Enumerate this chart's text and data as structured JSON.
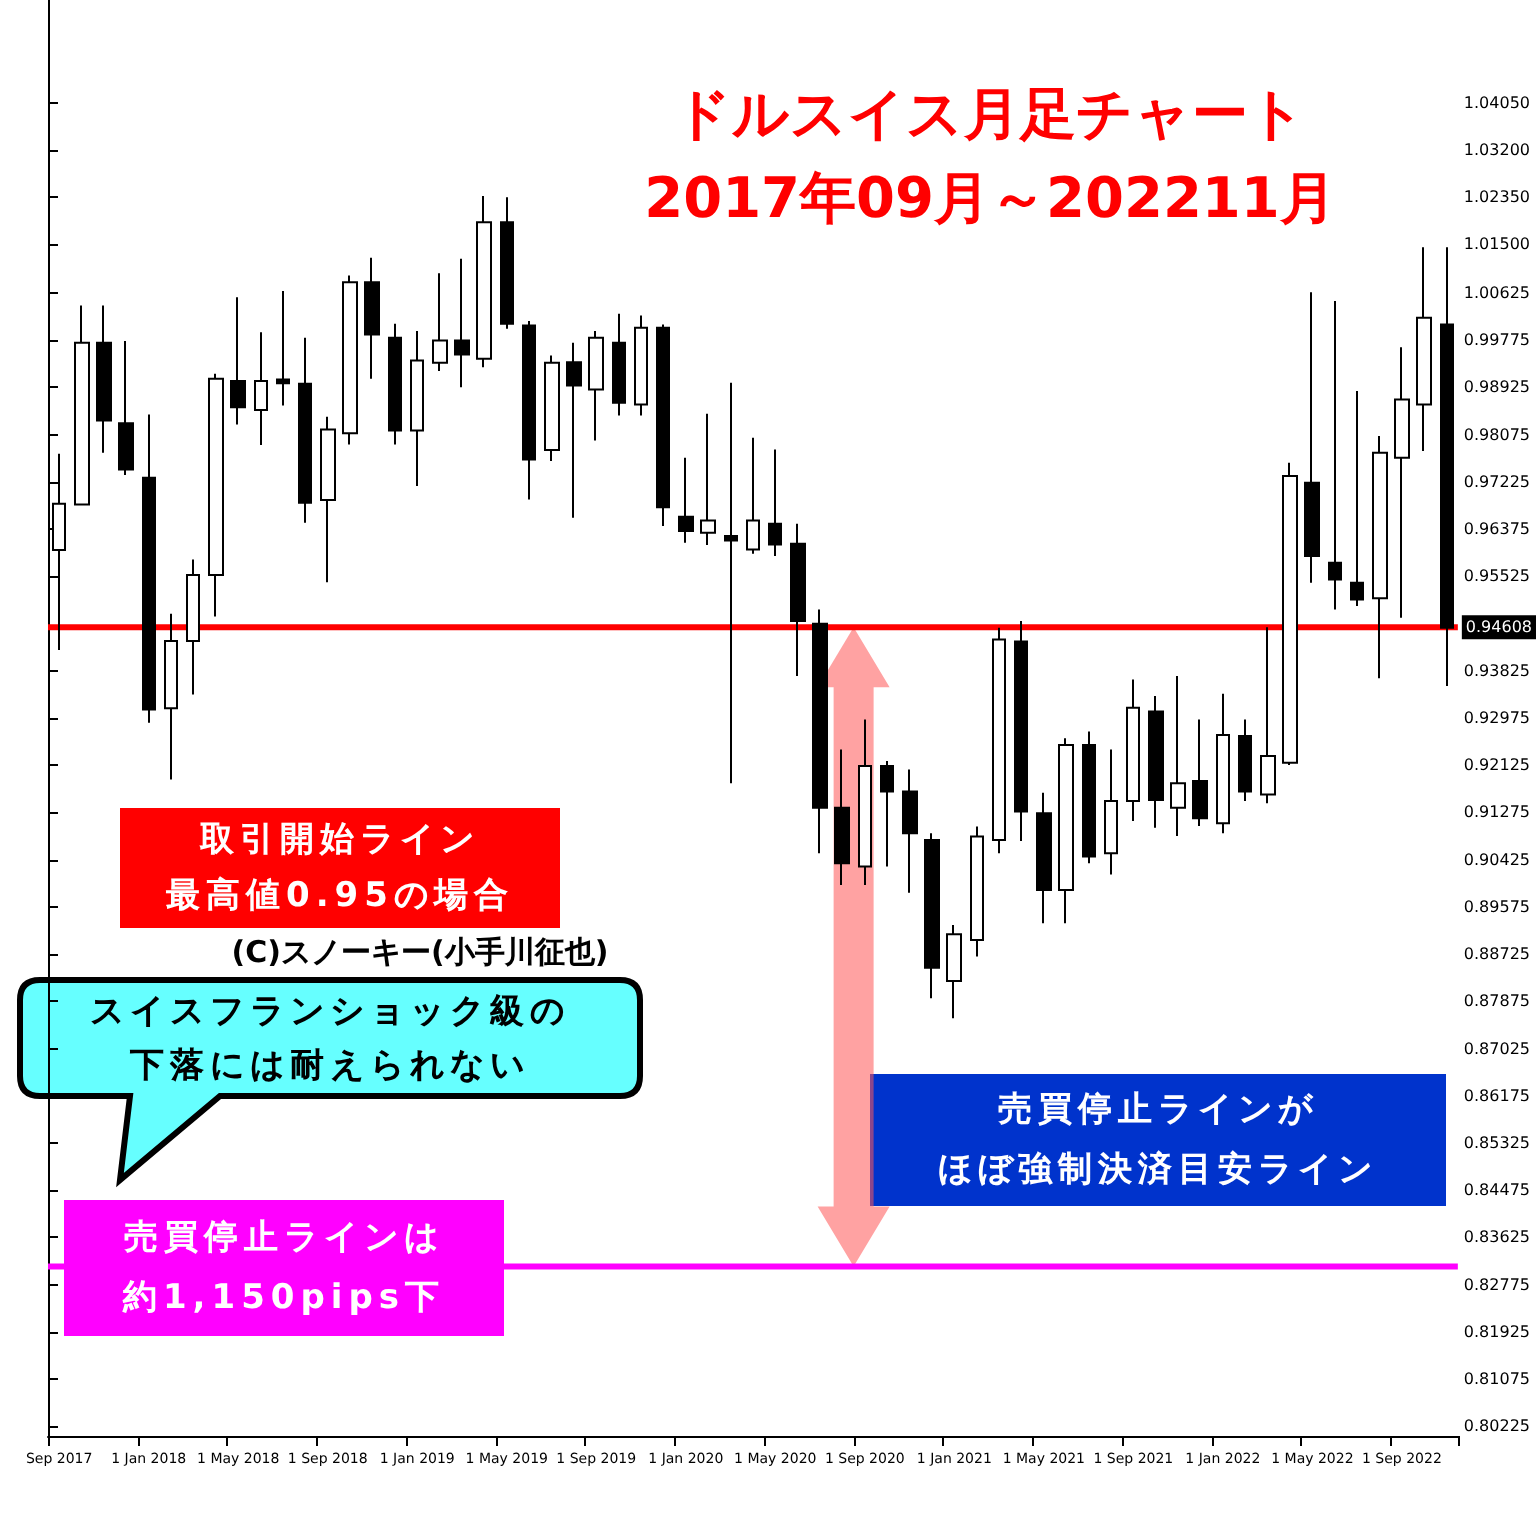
{
  "chart_data": {
    "type": "candlestick",
    "title": "ドルスイス月足チャート",
    "subtitle": "2017年09月～202211月",
    "categories": [
      "Sep 2017",
      null,
      null,
      null,
      "1 Jan 2018",
      null,
      null,
      null,
      "1 May 2018",
      null,
      null,
      null,
      "1 Sep 2018",
      null,
      null,
      null,
      "1 Jan 2019",
      null,
      null,
      null,
      "1 May 2019",
      null,
      null,
      null,
      "1 Sep 2019",
      null,
      null,
      null,
      "1 Jan 2020",
      null,
      null,
      null,
      "1 May 2020",
      null,
      null,
      null,
      "1 Sep 2020",
      null,
      null,
      null,
      "1 Jan 2021",
      null,
      null,
      null,
      "1 May 2021",
      null,
      null,
      null,
      "1 Sep 2021",
      null,
      null,
      null,
      "1 Jan 2022",
      null,
      null,
      null,
      "1 May 2022",
      null,
      null,
      null,
      "1 Sep 2022",
      null,
      null
    ],
    "ohlc": [
      [
        0.96,
        0.9773,
        0.942,
        0.9683
      ],
      [
        0.9682,
        1.004,
        0.968,
        0.9973
      ],
      [
        0.9973,
        1.004,
        0.9775,
        0.9833
      ],
      [
        0.9828,
        0.9976,
        0.9735,
        0.9745
      ],
      [
        0.973,
        0.9844,
        0.9289,
        0.9313
      ],
      [
        0.9315,
        0.9485,
        0.9187,
        0.9436
      ],
      [
        0.9436,
        0.9583,
        0.934,
        0.9555
      ],
      [
        0.9555,
        0.9917,
        0.948,
        0.9908
      ],
      [
        0.9904,
        1.0055,
        0.9826,
        0.9857
      ],
      [
        0.9852,
        0.9992,
        0.9789,
        0.9904
      ],
      [
        0.9907,
        1.0066,
        0.986,
        0.99
      ],
      [
        0.9899,
        0.9982,
        0.9649,
        0.9685
      ],
      [
        0.969,
        0.984,
        0.9542,
        0.9817
      ],
      [
        0.981,
        1.0094,
        0.979,
        1.0082
      ],
      [
        1.0082,
        1.0126,
        0.9908,
        0.9988
      ],
      [
        0.9982,
        1.0007,
        0.979,
        0.9815
      ],
      [
        0.9815,
        0.9994,
        0.9715,
        0.9941
      ],
      [
        0.9937,
        1.0098,
        0.9922,
        0.9977
      ],
      [
        0.9977,
        1.0124,
        0.9893,
        0.9952
      ],
      [
        0.9944,
        1.0237,
        0.9929,
        1.019
      ],
      [
        1.019,
        1.0235,
        0.9998,
        1.0007
      ],
      [
        1.0004,
        1.0012,
        0.9691,
        0.9763
      ],
      [
        0.978,
        0.995,
        0.976,
        0.9937
      ],
      [
        0.9938,
        0.9973,
        0.9658,
        0.9896
      ],
      [
        0.9889,
        0.9994,
        0.9797,
        0.9982
      ],
      [
        0.9973,
        1.0025,
        0.9842,
        0.9865
      ],
      [
        0.9862,
        1.0022,
        0.9842,
        1.0
      ],
      [
        1.0,
        1.0006,
        0.9643,
        0.9677
      ],
      [
        0.966,
        0.9766,
        0.9613,
        0.9634
      ],
      [
        0.9631,
        0.9845,
        0.9609,
        0.9653
      ],
      [
        0.9625,
        0.9901,
        0.918,
        0.9617
      ],
      [
        0.9601,
        0.9802,
        0.9593,
        0.9653
      ],
      [
        0.9647,
        0.9781,
        0.9589,
        0.961
      ],
      [
        0.9611,
        0.9647,
        0.9373,
        0.9472
      ],
      [
        0.9467,
        0.9493,
        0.9054,
        0.9136
      ],
      [
        0.9136,
        0.9241,
        0.8997,
        0.9036
      ],
      [
        0.903,
        0.9295,
        0.8997,
        0.9211
      ],
      [
        0.9211,
        0.922,
        0.903,
        0.9165
      ],
      [
        0.9165,
        0.9205,
        0.8983,
        0.909
      ],
      [
        0.9078,
        0.909,
        0.8793,
        0.8848
      ],
      [
        0.8824,
        0.8925,
        0.8757,
        0.8908
      ],
      [
        0.8898,
        0.9102,
        0.8868,
        0.9084
      ],
      [
        0.9078,
        0.946,
        0.9054,
        0.9439
      ],
      [
        0.9435,
        0.9472,
        0.9076,
        0.9129
      ],
      [
        0.9126,
        0.9163,
        0.8928,
        0.8988
      ],
      [
        0.8988,
        0.9261,
        0.8928,
        0.9249
      ],
      [
        0.9249,
        0.9273,
        0.9036,
        0.9048
      ],
      [
        0.9054,
        0.9241,
        0.9016,
        0.9148
      ],
      [
        0.9148,
        0.9367,
        0.9112,
        0.9316
      ],
      [
        0.9309,
        0.9337,
        0.91,
        0.915
      ],
      [
        0.9136,
        0.9373,
        0.9085,
        0.918
      ],
      [
        0.9184,
        0.9295,
        0.9103,
        0.9117
      ],
      [
        0.9108,
        0.9341,
        0.909,
        0.9267
      ],
      [
        0.9265,
        0.9295,
        0.9148,
        0.9165
      ],
      [
        0.916,
        0.9461,
        0.9144,
        0.9229
      ],
      [
        0.9217,
        0.9757,
        0.9213,
        0.9733
      ],
      [
        0.9721,
        1.0064,
        0.9541,
        0.9589
      ],
      [
        0.9577,
        1.0048,
        0.9493,
        0.9547
      ],
      [
        0.9541,
        0.9886,
        0.9499,
        0.9511
      ],
      [
        0.9513,
        0.9805,
        0.9369,
        0.9775
      ],
      [
        0.9766,
        0.9965,
        0.9478,
        0.9871
      ],
      [
        0.9862,
        1.0145,
        0.9778,
        1.0018
      ],
      [
        1.0006,
        1.0145,
        0.9355,
        0.946
      ]
    ],
    "ylim": [
      0.8005,
      1.059
    ],
    "yticks": [
      {
        "value": 1.0405,
        "label": "1.04050"
      },
      {
        "value": 1.032,
        "label": "1.03200"
      },
      {
        "value": 1.0235,
        "label": "1.02350"
      },
      {
        "value": 1.015,
        "label": "1.01500"
      },
      {
        "value": 1.00625,
        "label": "1.00625"
      },
      {
        "value": 0.99775,
        "label": "0.99775"
      },
      {
        "value": 0.98925,
        "label": "0.98925"
      },
      {
        "value": 0.98075,
        "label": "0.98075"
      },
      {
        "value": 0.97225,
        "label": "0.97225"
      },
      {
        "value": 0.96375,
        "label": "0.96375"
      },
      {
        "value": 0.95525,
        "label": "0.95525"
      },
      {
        "value": 0.93825,
        "label": "0.93825"
      },
      {
        "value": 0.92975,
        "label": "0.92975"
      },
      {
        "value": 0.92125,
        "label": "0.92125"
      },
      {
        "value": 0.91275,
        "label": "0.91275"
      },
      {
        "value": 0.90425,
        "label": "0.90425"
      },
      {
        "value": 0.89575,
        "label": "0.89575"
      },
      {
        "value": 0.88725,
        "label": "0.88725"
      },
      {
        "value": 0.87875,
        "label": "0.87875"
      },
      {
        "value": 0.87025,
        "label": "0.87025"
      },
      {
        "value": 0.86175,
        "label": "0.86175"
      },
      {
        "value": 0.85325,
        "label": "0.85325"
      },
      {
        "value": 0.84475,
        "label": "0.84475"
      },
      {
        "value": 0.83625,
        "label": "0.83625"
      },
      {
        "value": 0.82775,
        "label": "0.82775"
      },
      {
        "value": 0.81925,
        "label": "0.81925"
      },
      {
        "value": 0.81075,
        "label": "0.81075"
      },
      {
        "value": 0.80225,
        "label": "0.80225"
      }
    ],
    "ref_lines": [
      {
        "axis": "y",
        "value": 0.94608,
        "label": "0.94608",
        "color": "#ff0000"
      },
      {
        "axis": "y",
        "value": 0.831,
        "color": "#ff00ff"
      }
    ],
    "annotations": [
      "取引開始ライン",
      "最高値0.95の場合",
      "(C)スノーキー(小手川征也)",
      "スイスフランショック級の",
      "下落には耐えられない",
      "売買停止ラインが",
      "ほぼ強制決済目安ライン",
      "売買停止ラインは",
      "約1,150pips下"
    ],
    "grid": false
  }
}
